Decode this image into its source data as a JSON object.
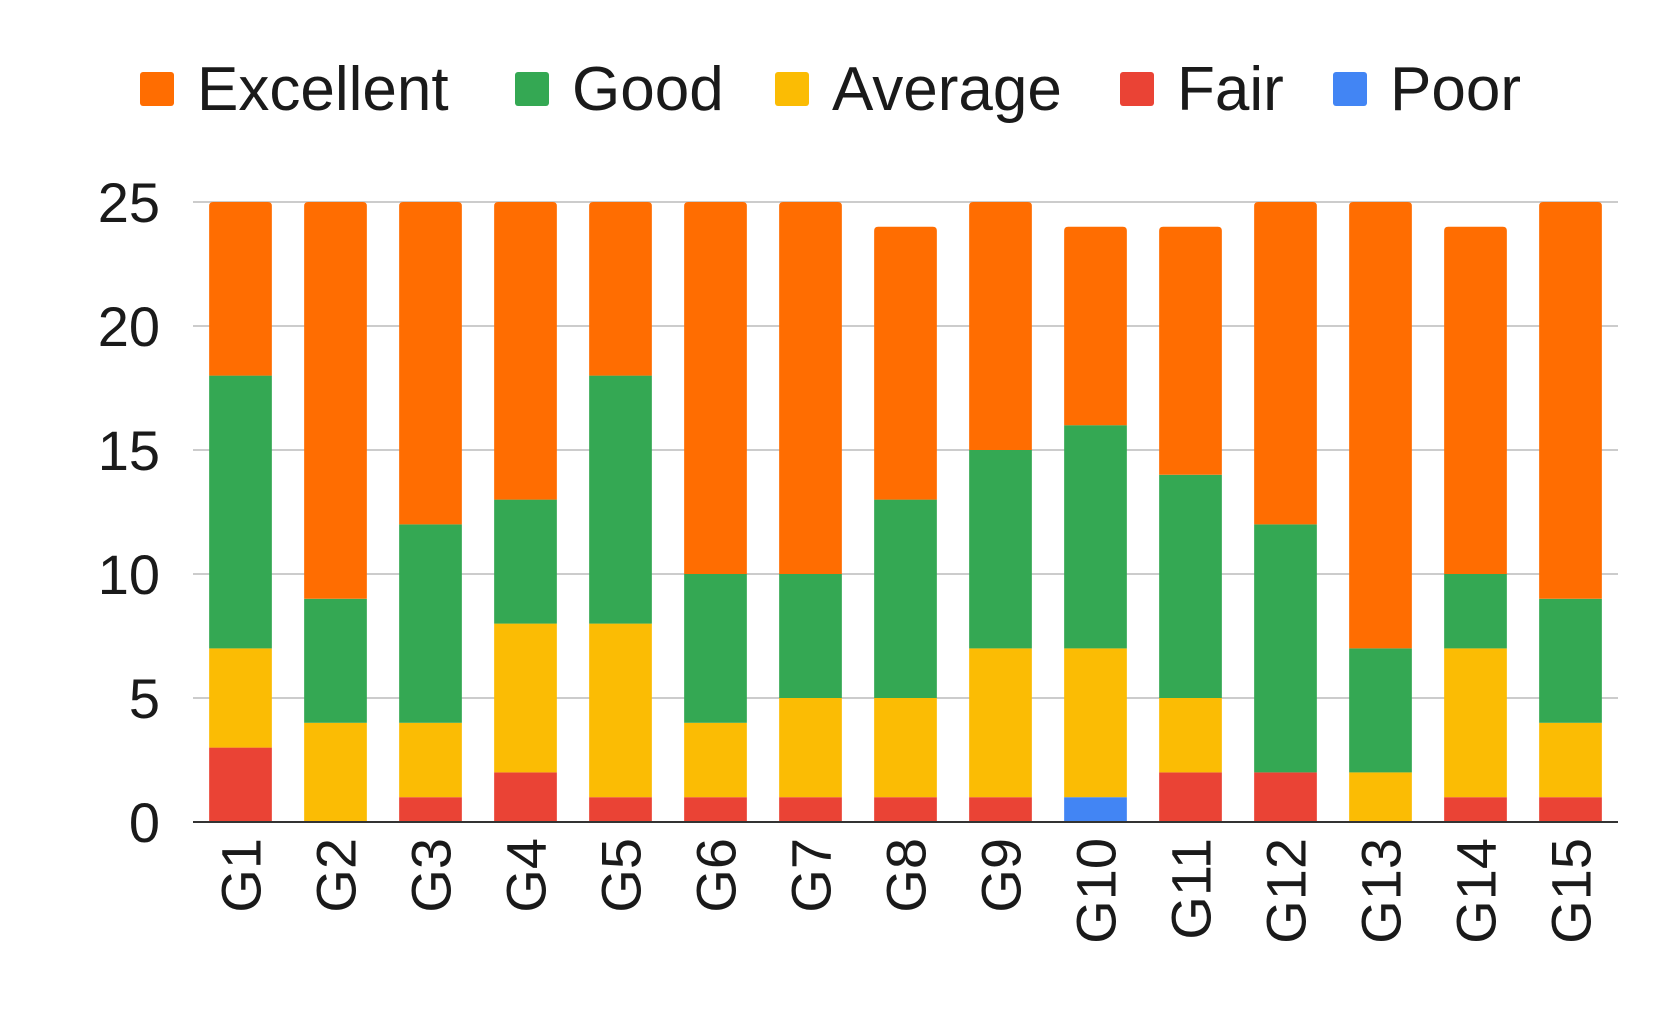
{
  "chart_data": {
    "type": "bar",
    "stacked": true,
    "title": "",
    "xlabel": "",
    "ylabel": "",
    "ylim": [
      0,
      25
    ],
    "yticks": [
      0,
      5,
      10,
      15,
      20,
      25
    ],
    "grid": true,
    "legend_position": "top",
    "categories": [
      "G1",
      "G2",
      "G3",
      "G4",
      "G5",
      "G6",
      "G7",
      "G8",
      "G9",
      "G10",
      "G11",
      "G12",
      "G13",
      "G14",
      "G15"
    ],
    "series": [
      {
        "name": "Poor",
        "color": "#4285f4",
        "values": [
          0,
          0,
          0,
          0,
          0,
          0,
          0,
          0,
          0,
          1,
          0,
          0,
          0,
          0,
          0
        ]
      },
      {
        "name": "Fair",
        "color": "#ea4335",
        "values": [
          3,
          0,
          1,
          2,
          1,
          1,
          1,
          1,
          1,
          0,
          2,
          2,
          0,
          1,
          1
        ]
      },
      {
        "name": "Average",
        "color": "#fbbc04",
        "values": [
          4,
          4,
          3,
          6,
          7,
          3,
          4,
          4,
          6,
          6,
          3,
          0,
          2,
          6,
          3
        ]
      },
      {
        "name": "Good",
        "color": "#34a853",
        "values": [
          11,
          5,
          8,
          5,
          10,
          6,
          5,
          8,
          8,
          9,
          9,
          10,
          5,
          3,
          5
        ]
      },
      {
        "name": "Excellent",
        "color": "#ff6d01",
        "values": [
          7,
          16,
          13,
          12,
          7,
          15,
          15,
          11,
          10,
          8,
          10,
          13,
          18,
          14,
          16
        ]
      }
    ],
    "legend_order": [
      "Excellent",
      "Good",
      "Average",
      "Fair",
      "Poor"
    ]
  }
}
